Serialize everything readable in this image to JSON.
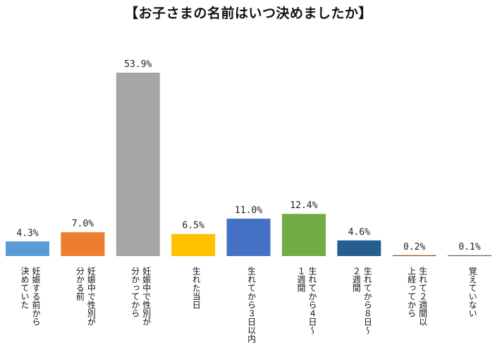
{
  "chart_data": {
    "type": "bar",
    "title": "【お子さまの名前はいつ決めましたか】",
    "categories": [
      "妊娠する前から\n決めていた",
      "妊娠中で性別が\n分かる前",
      "妊娠中で性別が\n分かってから",
      "生れた当日",
      "生れてから３日以内",
      "生れてから４日～\n１週間",
      "生れてから８日～\n２週間",
      "生れて２週間以\n上経ってから",
      "覚えていない"
    ],
    "values": [
      4.3,
      7.0,
      53.9,
      6.5,
      11.0,
      12.4,
      4.6,
      0.2,
      0.1
    ],
    "value_labels": [
      "4.3%",
      "7.0%",
      "53.9%",
      "6.5%",
      "11.0%",
      "12.4%",
      "4.6%",
      "0.2%",
      "0.1%"
    ],
    "colors": [
      "#5b9bd5",
      "#ed7d31",
      "#a5a5a5",
      "#ffc000",
      "#4472c4",
      "#70ad47",
      "#255e91",
      "#9e480e",
      "#636363"
    ],
    "xlabel": "",
    "ylabel": "",
    "ylim": [
      0,
      55
    ],
    "grid": false,
    "legend": "none"
  }
}
